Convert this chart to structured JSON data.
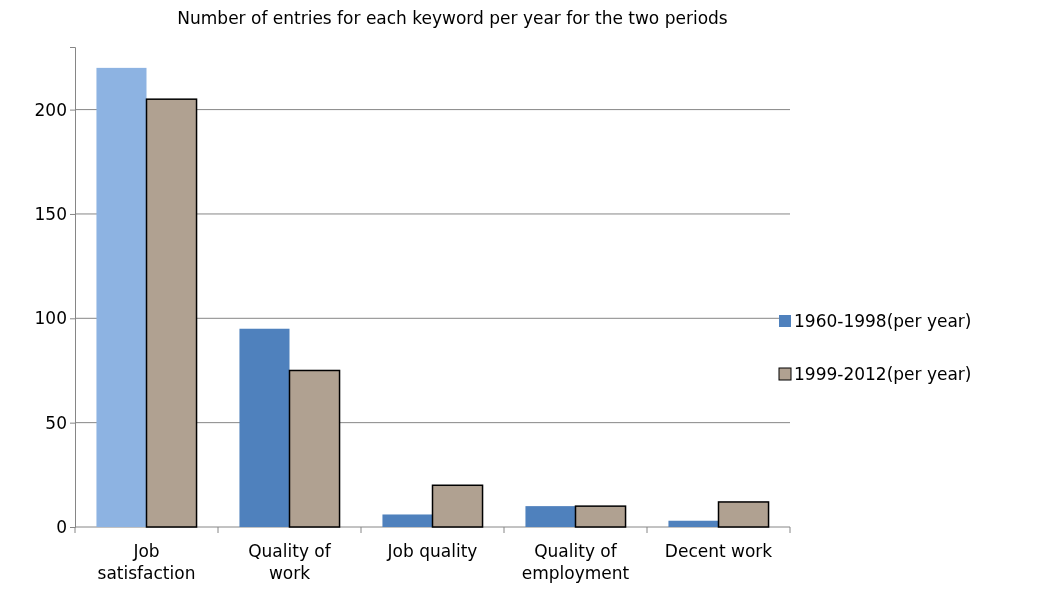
{
  "chart_data": {
    "type": "bar",
    "title": "Number of entries for each keyword per year for the two periods",
    "categories": [
      "Job satisfaction",
      "Quality of work",
      "Job quality",
      "Quality of employment",
      "Decent work"
    ],
    "series": [
      {
        "name": "1960-1998(per year)",
        "color": "#4f81bd",
        "colors": [
          "#8db3e2",
          "#4f81bd",
          "#4f81bd",
          "#4f81bd",
          "#4f81bd"
        ],
        "values": [
          220,
          95,
          6,
          10,
          3
        ]
      },
      {
        "name": "1999-2012(per year)",
        "color": "#b0a191",
        "values": [
          205,
          75,
          20,
          10,
          12
        ]
      }
    ],
    "ylim": [
      0,
      230
    ],
    "yticks": [
      0,
      50,
      100,
      150,
      200
    ],
    "grid": "y",
    "legend": "right"
  }
}
